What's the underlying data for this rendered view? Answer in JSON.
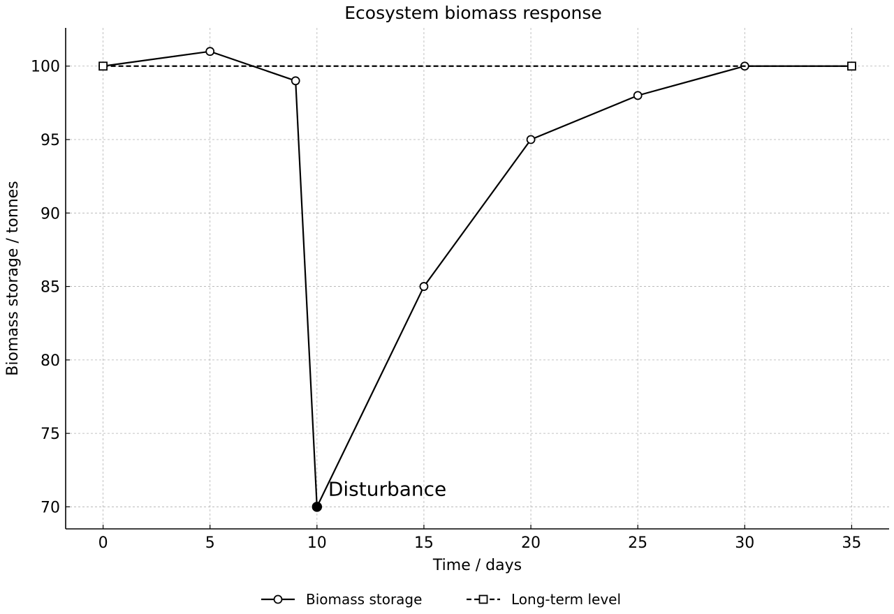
{
  "chart_data": {
    "type": "line",
    "title": "Ecosystem biomass response",
    "xlabel": "Time / days",
    "ylabel": "Biomass storage / tonnes",
    "xlim": [
      -1.75,
      36.75
    ],
    "ylim": [
      68.5,
      102.6
    ],
    "xticks": [
      0,
      5,
      10,
      15,
      20,
      25,
      30,
      35
    ],
    "yticks": [
      70,
      75,
      80,
      85,
      90,
      95,
      100
    ],
    "grid": true,
    "legend_position": "bottom-center",
    "series": [
      {
        "name": "Biomass storage",
        "x": [
          0,
          5,
          9,
          10,
          15,
          20,
          25,
          30,
          35
        ],
        "y": [
          100,
          101,
          99,
          70,
          85,
          95,
          98,
          100,
          100
        ],
        "line_style": "solid",
        "marker": "open-circle",
        "color": "#000000"
      },
      {
        "name": "Long-term level",
        "x": [
          0,
          35
        ],
        "y": [
          100,
          100
        ],
        "line_style": "dashed",
        "marker": "open-square",
        "color": "#000000"
      }
    ],
    "annotations": [
      {
        "text": "Disturbance",
        "x": 10,
        "y": 70,
        "marker": "filled-circle"
      }
    ]
  }
}
